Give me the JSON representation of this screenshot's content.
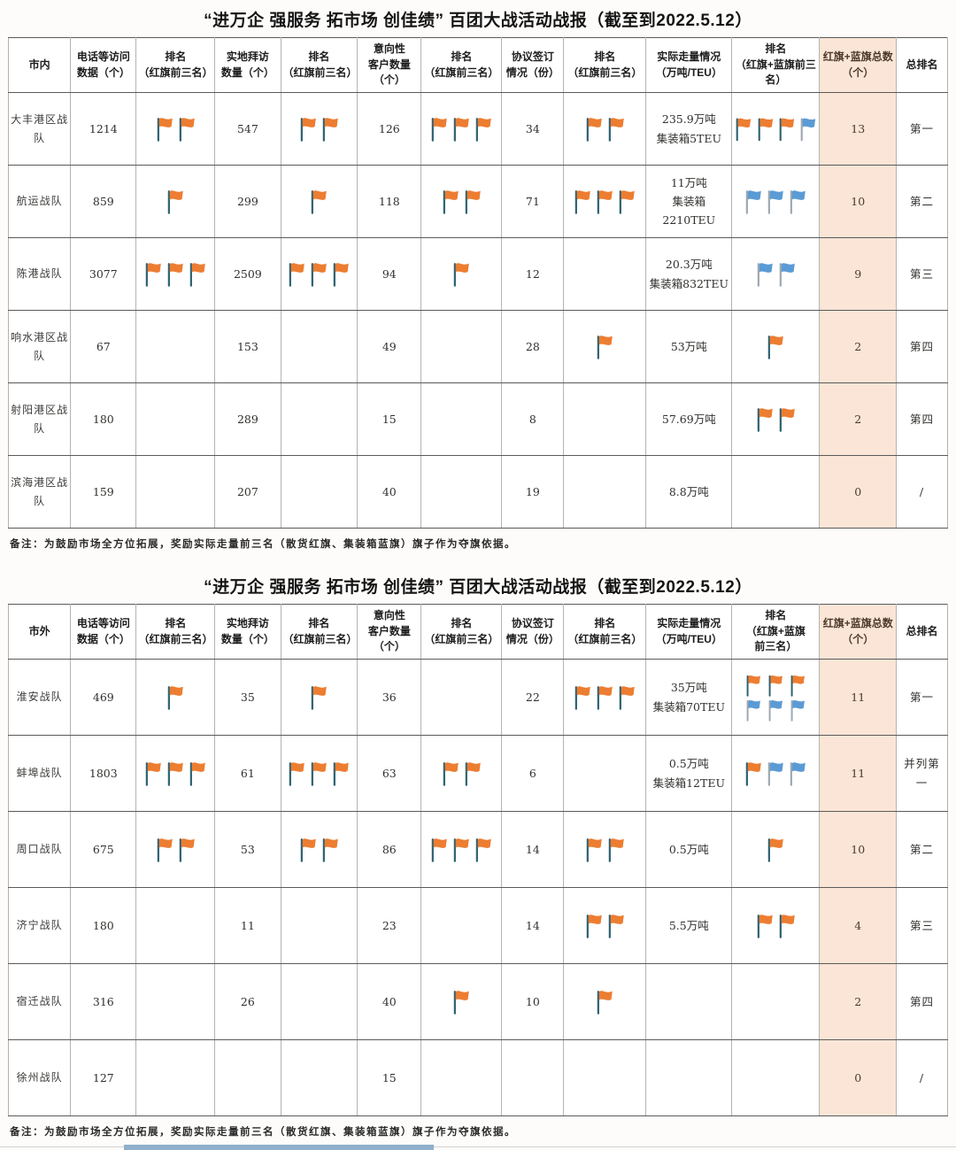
{
  "colors": {
    "red_flag": "#ED7D31",
    "red_flag_pole": "#2E6171",
    "blue_flag": "#5B9BD5",
    "blue_flag_pole": "#9FA8B0",
    "highlight_column": "#FBE5D6"
  },
  "tables": [
    {
      "title": "“进万企 强服务 拓市场 创佳绩” 百团大战活动战报（截至到2022.5.12）",
      "scope": "市内",
      "note": "备注：为鼓励市场全方位拓展，奖励实际走量前三名（散货红旗、集装箱蓝旗）旗子作为夺旗依据。",
      "headers": [
        "市内",
        "电话等访问\n数据（个）",
        "排名\n（红旗前三名）",
        "实地拜访\n数量（个）",
        "排名\n（红旗前三名）",
        "意向性\n客户数量\n（个）",
        "排名\n（红旗前三名）",
        "协议签订\n情况（份）",
        "排名\n（红旗前三名）",
        "实际走量情况\n（万吨/TEU）",
        "排名\n（红旗+蓝旗前三\n名）",
        "红旗+蓝旗总数\n（个）",
        "总排名"
      ],
      "rows": [
        {
          "team": "大丰港区战队",
          "calls": "1214",
          "rank_calls": {
            "o": 2
          },
          "visits": "547",
          "rank_visits": {
            "o": 2
          },
          "intent": "126",
          "rank_intent": {
            "o": 3
          },
          "agreements": "34",
          "rank_agreements": {
            "o": 2
          },
          "volume": "235.9万吨\n集装箱5TEU",
          "rank_volume": {
            "o": 3,
            "b": 1
          },
          "flag_total": "13",
          "overall": "第一"
        },
        {
          "team": "航运战队",
          "calls": "859",
          "rank_calls": {
            "o": 1
          },
          "visits": "299",
          "rank_visits": {
            "o": 1
          },
          "intent": "118",
          "rank_intent": {
            "o": 2
          },
          "agreements": "71",
          "rank_agreements": {
            "o": 3
          },
          "volume": "11万吨\n集装箱2210TEU",
          "rank_volume": {
            "b": 3
          },
          "flag_total": "10",
          "overall": "第二"
        },
        {
          "team": "陈港战队",
          "calls": "3077",
          "rank_calls": {
            "o": 3
          },
          "visits": "2509",
          "rank_visits": {
            "o": 3
          },
          "intent": "94",
          "rank_intent": {
            "o": 1
          },
          "agreements": "12",
          "rank_agreements": {},
          "volume": "20.3万吨\n集装箱832TEU",
          "rank_volume": {
            "b": 2
          },
          "flag_total": "9",
          "overall": "第三"
        },
        {
          "team": "响水港区战队",
          "calls": "67",
          "rank_calls": {},
          "visits": "153",
          "rank_visits": {},
          "intent": "49",
          "rank_intent": {},
          "agreements": "28",
          "rank_agreements": {
            "o": 1
          },
          "volume": "53万吨",
          "rank_volume": {
            "o": 1
          },
          "flag_total": "2",
          "overall": "第四"
        },
        {
          "team": "射阳港区战队",
          "calls": "180",
          "rank_calls": {},
          "visits": "289",
          "rank_visits": {},
          "intent": "15",
          "rank_intent": {},
          "agreements": "8",
          "rank_agreements": {},
          "volume": "57.69万吨",
          "rank_volume": {
            "o": 2
          },
          "flag_total": "2",
          "overall": "第四"
        },
        {
          "team": "滨海港区战队",
          "calls": "159",
          "rank_calls": {},
          "visits": "207",
          "rank_visits": {},
          "intent": "40",
          "rank_intent": {},
          "agreements": "19",
          "rank_agreements": {},
          "volume": "8.8万吨",
          "rank_volume": {},
          "flag_total": "0",
          "overall": "/"
        }
      ]
    },
    {
      "title": "“进万企 强服务 拓市场 创佳绩” 百团大战活动战报（截至到2022.5.12）",
      "scope": "市外",
      "note": "备注：为鼓励市场全方位拓展，奖励实际走量前三名（散货红旗、集装箱蓝旗）旗子作为夺旗依据。",
      "headers": [
        "市外",
        "电话等访问\n数据（个）",
        "排名\n（红旗前三名）",
        "实地拜访\n数量（个）",
        "排名\n（红旗前三名）",
        "意向性\n客户数量\n（个）",
        "排名\n（红旗前三名）",
        "协议签订\n情况（份）",
        "排名\n（红旗前三名）",
        "实际走量情况\n（万吨/TEU）",
        "排名\n（红旗+蓝旗\n前三名）",
        "红旗+蓝旗总数\n（个）",
        "总排名"
      ],
      "rows": [
        {
          "team": "淮安战队",
          "calls": "469",
          "rank_calls": {
            "o": 1
          },
          "visits": "35",
          "rank_visits": {
            "o": 1
          },
          "intent": "36",
          "rank_intent": {},
          "agreements": "22",
          "rank_agreements": {
            "o": 3
          },
          "volume": "35万吨\n集装箱70TEU",
          "rank_volume": {
            "o": 3,
            "b": 3,
            "stacked": true
          },
          "flag_total": "11",
          "overall": "第一"
        },
        {
          "team": "蚌埠战队",
          "calls": "1803",
          "rank_calls": {
            "o": 3
          },
          "visits": "61",
          "rank_visits": {
            "o": 3
          },
          "intent": "63",
          "rank_intent": {
            "o": 2
          },
          "agreements": "6",
          "rank_agreements": {},
          "volume": "0.5万吨\n集装箱12TEU",
          "rank_volume": {
            "o": 1,
            "b": 2
          },
          "flag_total": "11",
          "overall": "并列第一"
        },
        {
          "team": "周口战队",
          "calls": "675",
          "rank_calls": {
            "o": 2
          },
          "visits": "53",
          "rank_visits": {
            "o": 2
          },
          "intent": "86",
          "rank_intent": {
            "o": 3
          },
          "agreements": "14",
          "rank_agreements": {
            "o": 2
          },
          "volume": "0.5万吨",
          "rank_volume": {
            "o": 1
          },
          "flag_total": "10",
          "overall": "第二"
        },
        {
          "team": "济宁战队",
          "calls": "180",
          "rank_calls": {},
          "visits": "11",
          "rank_visits": {},
          "intent": "23",
          "rank_intent": {},
          "agreements": "14",
          "rank_agreements": {
            "o": 2
          },
          "volume": "5.5万吨",
          "rank_volume": {
            "o": 2
          },
          "flag_total": "4",
          "overall": "第三"
        },
        {
          "team": "宿迁战队",
          "calls": "316",
          "rank_calls": {},
          "visits": "26",
          "rank_visits": {},
          "intent": "40",
          "rank_intent": {
            "o": 1
          },
          "agreements": "10",
          "rank_agreements": {
            "o": 1
          },
          "volume": "",
          "rank_volume": {},
          "flag_total": "2",
          "overall": "第四"
        },
        {
          "team": "徐州战队",
          "calls": "127",
          "rank_calls": {},
          "visits": "",
          "rank_visits": {},
          "intent": "15",
          "rank_intent": {},
          "agreements": "",
          "rank_agreements": {},
          "volume": "",
          "rank_volume": {},
          "flag_total": "0",
          "overall": "/"
        }
      ]
    }
  ]
}
